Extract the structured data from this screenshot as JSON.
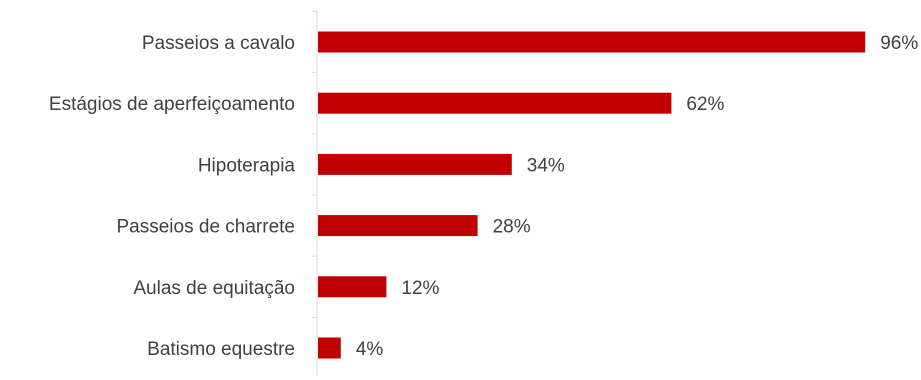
{
  "chart_data": {
    "type": "bar",
    "orientation": "horizontal",
    "categories": [
      "Passeios a cavalo",
      "Estágios de aperfeiçoamento",
      "Hipoterapia",
      "Passeios de charrete",
      "Aulas de equitação",
      "Batismo equestre"
    ],
    "values": [
      96,
      62,
      34,
      28,
      12,
      4
    ],
    "value_labels": [
      "96%",
      "62%",
      "34%",
      "28%",
      "12%",
      "4%"
    ],
    "unit": "%",
    "xlim": [
      0,
      100
    ],
    "grid": false,
    "legend": "none",
    "bar_color": "#C00000",
    "axis_color": "#D9D9D9",
    "label_color": "#404040"
  }
}
